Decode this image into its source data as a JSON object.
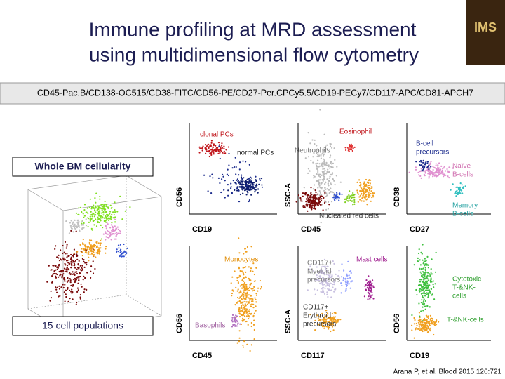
{
  "header": {
    "title_lines": [
      "Immune profiling at MRD assessment",
      "using multidimensional flow cytometry"
    ],
    "logo": "IMS"
  },
  "marker_panel": "CD45-Pac.B/CD138-OC515/CD38-FITC/CD56-PE/CD27-Per.CPCy5.5/CD19-PECy7/CD117-APC/CD81-APCH7",
  "left": {
    "top_label": "Whole BM cellularity",
    "bottom_label": "15 cell populations"
  },
  "panels": [
    {
      "x_label": "CD19",
      "y_label": "CD56",
      "annotations": [
        [
          "clonal PCs"
        ],
        [
          "normal PCs"
        ]
      ]
    },
    {
      "x_label": "CD45",
      "y_label": "SSC-A",
      "annotations": [
        [
          "Eosinophil"
        ],
        [
          "Neutrophils"
        ],
        [
          "Nucleated red cells"
        ]
      ]
    },
    {
      "x_label": "CD27",
      "y_label": "CD38",
      "annotations": [
        [
          "B-cell",
          "precursors"
        ],
        [
          "Naïve",
          "B-cells"
        ],
        [
          "Memory",
          "B-cells"
        ]
      ]
    },
    {
      "x_label": "CD45",
      "y_label": "CD56",
      "annotations": [
        [
          "Monocytes"
        ],
        [
          "Basophils"
        ]
      ]
    },
    {
      "x_label": "CD117",
      "y_label": "SSC-A",
      "annotations": [
        [
          "CD117+",
          "Myeloid",
          "precursors"
        ],
        [
          "Mast cells"
        ],
        [
          "CD117+",
          "Erythroid",
          "precursors"
        ]
      ]
    },
    {
      "x_label": "CD19",
      "y_label": "CD56",
      "annotations": [
        [
          "Cytotoxic",
          "T-&NK-",
          "cells"
        ],
        [
          "T-&NK-cells"
        ]
      ]
    }
  ],
  "citation": "Arana P, et al. Blood 2015 126:721"
}
